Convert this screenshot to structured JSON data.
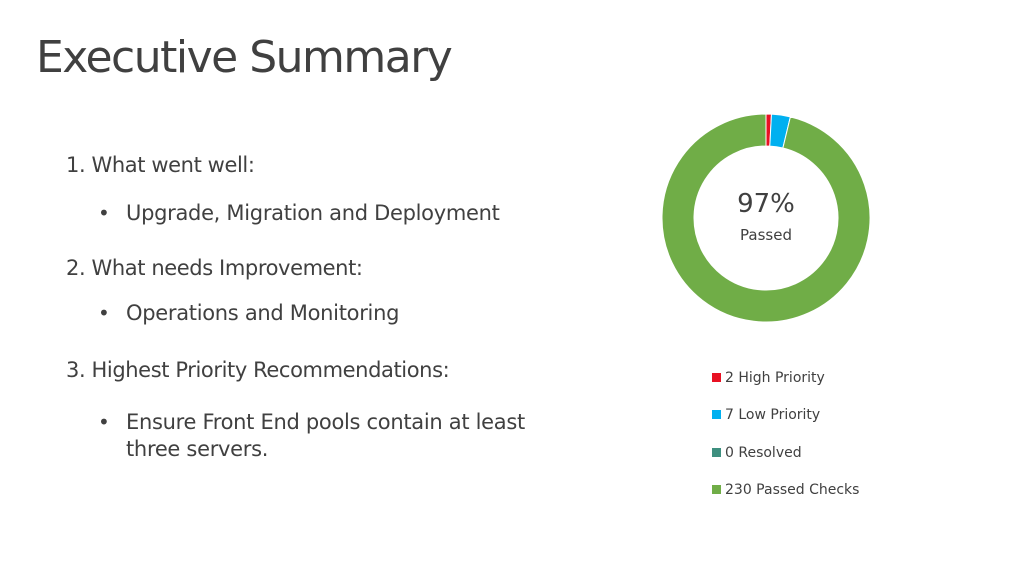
{
  "slide": {
    "title": "Executive Summary",
    "sections": [
      {
        "heading": "1. What went well:",
        "bullet": "Upgrade, Migration and Deployment"
      },
      {
        "heading": "2. What needs Improvement:",
        "bullet": "Operations and Monitoring"
      },
      {
        "heading": "3. Highest Priority Recommendations:",
        "bullet": "Ensure Front End pools contain at least three servers."
      }
    ],
    "bullet_glyph": "•"
  },
  "chart_data": {
    "type": "pie",
    "style": "donut",
    "center_value": "97%",
    "center_label": "Passed",
    "slices": [
      {
        "label": "High Priority",
        "value": 2,
        "color": "#e81123"
      },
      {
        "label": "Low Priority",
        "value": 7,
        "color": "#00b0f0"
      },
      {
        "label": "Resolved",
        "value": 0,
        "color": "#3e8f7f"
      },
      {
        "label": "Passed Checks",
        "value": 230,
        "color": "#70ad47"
      }
    ],
    "legend": {
      "position": "bottom-right",
      "entries": [
        "2 High Priority",
        "7 Low Priority",
        "0 Resolved",
        "230 Passed Checks"
      ]
    }
  }
}
